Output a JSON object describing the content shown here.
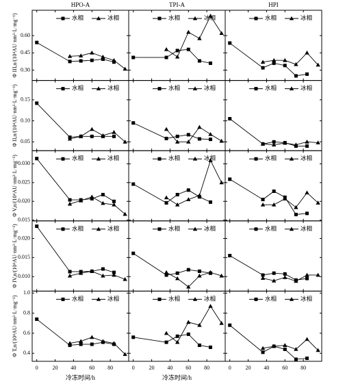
{
  "chart_data": [
    {
      "type": "line",
      "title": "HPO-A",
      "ylabel": "Φ III,n/(10⁴AU·nm²·L·mg⁻¹)",
      "x": [
        0,
        36,
        48,
        60,
        72,
        84,
        96
      ],
      "xlim": [
        -5,
        100
      ],
      "ylim": [
        0.21,
        0.82
      ],
      "yticks": [
        {
          "value": 0.3,
          "label": "0.30"
        },
        0.45,
        {
          "value": 0.6,
          "label": "0.60"
        }
      ],
      "series": [
        {
          "name": "水相",
          "marker": "square",
          "color": "#000000",
          "values": [
            0.54,
            0.375,
            0.38,
            0.385,
            0.395,
            0.37,
            null
          ]
        },
        {
          "name": "冰相",
          "marker": "triangle",
          "color": "#000000",
          "values": [
            null,
            0.42,
            0.425,
            0.45,
            0.415,
            0.385,
            0.31
          ]
        }
      ]
    },
    {
      "type": "line",
      "title": "TPI-A",
      "x": [
        0,
        36,
        48,
        60,
        72,
        84,
        96
      ],
      "xlim": [
        -5,
        100
      ],
      "ylim": [
        0.21,
        0.82
      ],
      "series": [
        {
          "name": "水相",
          "marker": "square",
          "color": "#000000",
          "values": [
            0.41,
            0.41,
            0.47,
            0.48,
            0.38,
            0.36,
            null
          ]
        },
        {
          "name": "冰相",
          "marker": "triangle",
          "color": "#000000",
          "values": [
            null,
            0.48,
            0.415,
            0.63,
            0.575,
            0.77,
            0.62
          ]
        }
      ]
    },
    {
      "type": "line",
      "title": "HPI",
      "x": [
        0,
        36,
        48,
        60,
        72,
        84,
        96
      ],
      "xlim": [
        -5,
        100
      ],
      "ylim": [
        0.21,
        0.82
      ],
      "series": [
        {
          "name": "水相",
          "marker": "square",
          "color": "#000000",
          "values": [
            0.535,
            0.32,
            0.36,
            0.34,
            0.25,
            0.265,
            null
          ]
        },
        {
          "name": "冰相",
          "marker": "triangle",
          "color": "#000000",
          "values": [
            null,
            0.37,
            0.385,
            0.385,
            0.35,
            0.45,
            0.345
          ]
        }
      ]
    },
    {
      "type": "line",
      "ylabel": "Φ II,n/(10⁴AU·nm²·L·mg⁻¹)",
      "x": [
        0,
        36,
        48,
        60,
        72,
        84,
        96
      ],
      "xlim": [
        -5,
        100
      ],
      "ylim": [
        0.029,
        0.196
      ],
      "yticks": [
        0.05,
        {
          "value": 0.1,
          "label": "0.10"
        },
        0.15
      ],
      "series": [
        {
          "name": "水相",
          "marker": "square",
          "color": "#000000",
          "values": [
            0.142,
            0.061,
            0.063,
            0.063,
            0.063,
            0.063,
            null
          ]
        },
        {
          "name": "冰相",
          "marker": "triangle",
          "color": "#000000",
          "values": [
            null,
            0.057,
            0.063,
            0.08,
            0.065,
            0.073,
            0.05
          ]
        }
      ]
    },
    {
      "type": "line",
      "x": [
        0,
        36,
        48,
        60,
        72,
        84,
        96
      ],
      "xlim": [
        -5,
        100
      ],
      "ylim": [
        0.029,
        0.196
      ],
      "series": [
        {
          "name": "水相",
          "marker": "square",
          "color": "#000000",
          "values": [
            0.095,
            0.058,
            0.063,
            0.067,
            0.057,
            0.056,
            null
          ]
        },
        {
          "name": "冰相",
          "marker": "triangle",
          "color": "#000000",
          "values": [
            null,
            0.08,
            0.05,
            0.05,
            0.085,
            0.068,
            0.052
          ]
        }
      ]
    },
    {
      "type": "line",
      "x": [
        0,
        36,
        48,
        60,
        72,
        84,
        96
      ],
      "xlim": [
        -5,
        100
      ],
      "ylim": [
        0.029,
        0.196
      ],
      "series": [
        {
          "name": "水相",
          "marker": "square",
          "color": "#000000",
          "values": [
            0.105,
            0.045,
            0.05,
            0.048,
            0.04,
            0.04,
            null
          ]
        },
        {
          "name": "冰相",
          "marker": "triangle",
          "color": "#000000",
          "values": [
            null,
            0.045,
            0.043,
            0.047,
            0.043,
            0.05,
            0.048
          ]
        }
      ]
    },
    {
      "type": "line",
      "ylabel": "Φ V,n/(10⁴AU·nm²·L·mg⁻¹)",
      "x": [
        0,
        36,
        48,
        60,
        72,
        84,
        96
      ],
      "xlim": [
        -5,
        100
      ],
      "ylim": [
        0.0148,
        0.0335
      ],
      "yticks": [
        0.015,
        {
          "value": 0.02,
          "label": "0.020"
        },
        0.025,
        {
          "value": 0.03,
          "label": "0.030"
        }
      ],
      "series": [
        {
          "name": "水相",
          "marker": "square",
          "color": "#000000",
          "values": [
            0.0314,
            0.0204,
            0.0204,
            0.0207,
            0.0218,
            0.02,
            null
          ]
        },
        {
          "name": "冰相",
          "marker": "triangle",
          "color": "#000000",
          "values": [
            null,
            0.0193,
            0.0202,
            0.0212,
            0.0195,
            0.0191,
            0.0166
          ]
        }
      ]
    },
    {
      "type": "line",
      "x": [
        0,
        36,
        48,
        60,
        72,
        84,
        96
      ],
      "xlim": [
        -5,
        100
      ],
      "ylim": [
        0.0148,
        0.0335
      ],
      "series": [
        {
          "name": "水相",
          "marker": "square",
          "color": "#000000",
          "values": [
            0.0246,
            0.0196,
            0.0218,
            0.023,
            0.0212,
            0.0198,
            null
          ]
        },
        {
          "name": "冰相",
          "marker": "triangle",
          "color": "#000000",
          "values": [
            null,
            0.021,
            0.0191,
            0.0205,
            0.0216,
            0.0309,
            0.025
          ]
        }
      ]
    },
    {
      "type": "line",
      "x": [
        0,
        36,
        48,
        60,
        72,
        84,
        96
      ],
      "xlim": [
        -5,
        100
      ],
      "ylim": [
        0.0148,
        0.0335
      ],
      "series": [
        {
          "name": "水相",
          "marker": "square",
          "color": "#000000",
          "values": [
            0.0259,
            0.0205,
            0.0227,
            0.0211,
            0.0165,
            0.0168,
            null
          ]
        },
        {
          "name": "冰相",
          "marker": "triangle",
          "color": "#000000",
          "values": [
            null,
            0.0191,
            0.0191,
            0.0207,
            0.0184,
            0.0223,
            0.0196
          ]
        }
      ]
    },
    {
      "type": "line",
      "ylabel": "Φ IV,n/(10⁴AU·nm²·L·mg⁻¹)",
      "x": [
        0,
        36,
        48,
        60,
        72,
        84,
        96
      ],
      "xlim": [
        -5,
        100
      ],
      "ylim": [
        0.0062,
        0.0246
      ],
      "yticks": [
        {
          "value": 0.01,
          "label": "0.010"
        },
        0.015,
        {
          "value": 0.02,
          "label": "0.020"
        }
      ],
      "series": [
        {
          "name": "水相",
          "marker": "square",
          "color": "#000000",
          "values": [
            0.0232,
            0.0113,
            0.0113,
            0.0114,
            0.012,
            0.0111,
            null
          ]
        },
        {
          "name": "冰相",
          "marker": "triangle",
          "color": "#000000",
          "values": [
            null,
            0.0102,
            0.0109,
            0.0114,
            0.0102,
            0.0104,
            0.0093
          ]
        }
      ]
    },
    {
      "type": "line",
      "x": [
        0,
        36,
        48,
        60,
        72,
        84,
        96
      ],
      "xlim": [
        -5,
        100
      ],
      "ylim": [
        0.0062,
        0.0246
      ],
      "series": [
        {
          "name": "水相",
          "marker": "square",
          "color": "#000000",
          "values": [
            0.0161,
            0.0104,
            0.0109,
            0.0118,
            0.0114,
            0.0109,
            null
          ]
        },
        {
          "name": "冰相",
          "marker": "triangle",
          "color": "#000000",
          "values": [
            null,
            0.0111,
            0.0095,
            0.0073,
            0.0102,
            0.0111,
            0.0102
          ]
        }
      ]
    },
    {
      "type": "line",
      "x": [
        0,
        36,
        48,
        60,
        72,
        84,
        96
      ],
      "xlim": [
        -5,
        100
      ],
      "ylim": [
        0.0062,
        0.0246
      ],
      "series": [
        {
          "name": "水相",
          "marker": "square",
          "color": "#000000",
          "values": [
            0.0155,
            0.0104,
            0.0109,
            0.0107,
            0.0091,
            0.0095,
            null
          ]
        },
        {
          "name": "冰相",
          "marker": "triangle",
          "color": "#000000",
          "values": [
            null,
            0.0096,
            0.0089,
            0.0098,
            0.0088,
            0.0104,
            0.0104
          ]
        }
      ]
    },
    {
      "type": "line",
      "ylabel": "Φ T,n/(10⁴AU·nm²·L·mg⁻¹)",
      "xlabel": "冷冻时间/h",
      "x": [
        0,
        36,
        48,
        60,
        72,
        84,
        96
      ],
      "xlim": [
        -5,
        100
      ],
      "ylim": [
        0.32,
        1.02
      ],
      "yticks": [
        0.4,
        0.6,
        0.8,
        {
          "value": 1,
          "label": "1.0"
        }
      ],
      "xticks": [
        0,
        20,
        40,
        60,
        80
      ],
      "series": [
        {
          "name": "水相",
          "marker": "square",
          "color": "#000000",
          "values": [
            0.74,
            0.48,
            0.49,
            0.49,
            0.51,
            0.49,
            null
          ]
        },
        {
          "name": "冰相",
          "marker": "triangle",
          "color": "#000000",
          "values": [
            null,
            0.5,
            0.52,
            0.56,
            0.52,
            0.5,
            0.39
          ]
        }
      ]
    },
    {
      "type": "line",
      "xlabel": "冷冻时间/h",
      "x": [
        0,
        36,
        48,
        60,
        72,
        84,
        96
      ],
      "xlim": [
        -5,
        100
      ],
      "ylim": [
        0.32,
        1.02
      ],
      "xticks": [
        0,
        20,
        40,
        60,
        80
      ],
      "series": [
        {
          "name": "水相",
          "marker": "square",
          "color": "#000000",
          "values": [
            0.56,
            0.51,
            0.57,
            0.59,
            0.48,
            0.46,
            null
          ]
        },
        {
          "name": "冰相",
          "marker": "triangle",
          "color": "#000000",
          "values": [
            null,
            0.6,
            0.51,
            0.71,
            0.68,
            0.87,
            0.7
          ]
        }
      ]
    },
    {
      "type": "line",
      "x": [
        0,
        36,
        48,
        60,
        72,
        84,
        96
      ],
      "xlim": [
        -5,
        100
      ],
      "ylim": [
        0.32,
        1.02
      ],
      "xticks": [
        0,
        20,
        40,
        60,
        80
      ],
      "series": [
        {
          "name": "水相",
          "marker": "square",
          "color": "#000000",
          "values": [
            0.68,
            0.41,
            0.47,
            0.44,
            0.34,
            0.35,
            null
          ]
        },
        {
          "name": "冰相",
          "marker": "triangle",
          "color": "#000000",
          "values": [
            null,
            0.45,
            0.47,
            0.48,
            0.44,
            0.54,
            0.43
          ]
        }
      ]
    }
  ]
}
